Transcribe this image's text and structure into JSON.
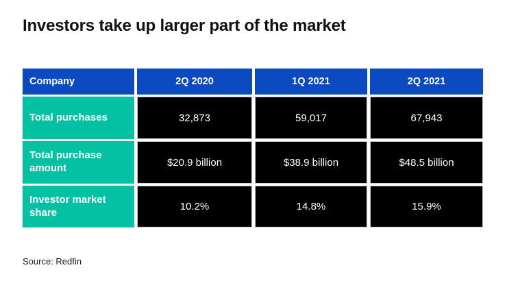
{
  "colors": {
    "header_bg": "#0c4ac1",
    "label_bg": "#04c1a3",
    "value_bg": "#000000",
    "text_light": "#ffffff",
    "title_text": "#111111"
  },
  "chart_data": {
    "type": "table",
    "title": "Investors take up larger part of the market",
    "columns": [
      "Company",
      "2Q 2020",
      "1Q 2021",
      "2Q 2021"
    ],
    "rows": [
      [
        "Total purchases",
        "32,873",
        "59,017",
        "67,943"
      ],
      [
        "Total purchase amount",
        "$20.9 billion",
        "$38.9 billion",
        "$48.5 billion"
      ],
      [
        "Investor market share",
        "10.2%",
        "14.8%",
        "15.9%"
      ]
    ],
    "source": "Source: Redfin",
    "layout": {
      "header_row_color": "blue",
      "label_column_color": "teal",
      "value_cells_color": "black",
      "grid": "white gaps between cells"
    }
  }
}
